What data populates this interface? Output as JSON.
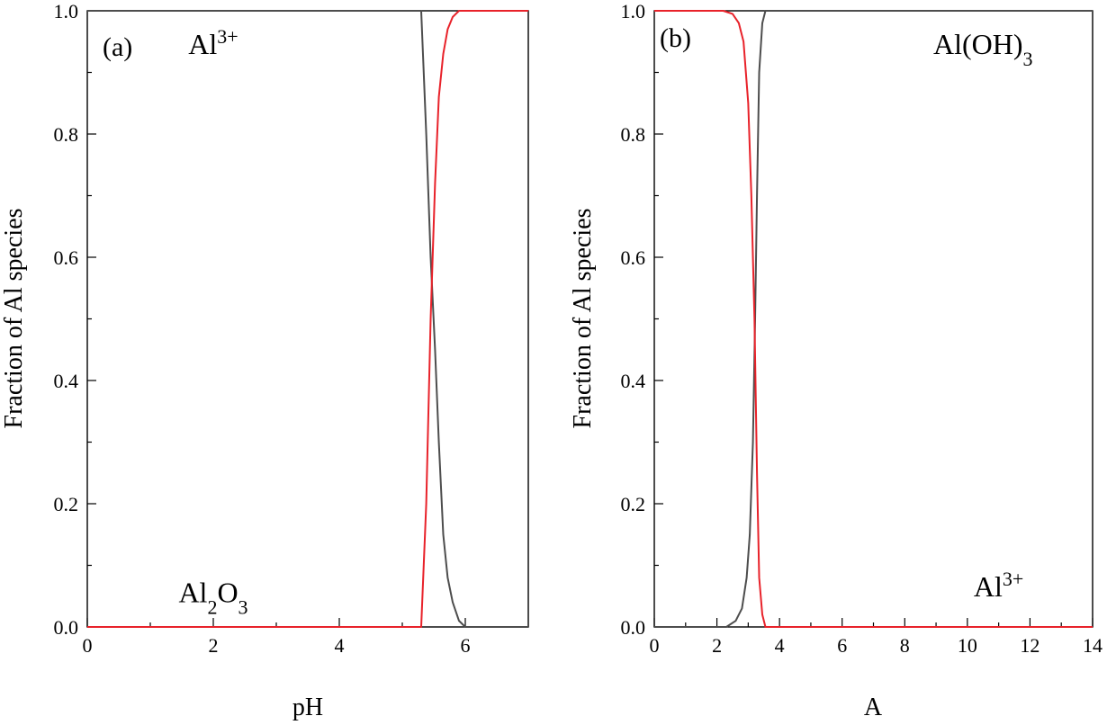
{
  "chart_data": [
    {
      "type": "line",
      "panel_label": "(a)",
      "xlabel": "pH",
      "ylabel": "Fraction of Al species",
      "xlim": [
        0,
        7
      ],
      "ylim": [
        0,
        1
      ],
      "xticks": [
        0,
        2,
        4,
        6
      ],
      "yticks": [
        0.0,
        0.2,
        0.4,
        0.6,
        0.8,
        1.0
      ],
      "xtick_labels": [
        "0",
        "2",
        "4",
        "6"
      ],
      "ytick_labels": [
        "0.0",
        "0.2",
        "0.4",
        "0.6",
        "0.8",
        "1.0"
      ],
      "series": [
        {
          "color": "#4d4d4d",
          "x": [
            0,
            5.3,
            5.38,
            5.45,
            5.52,
            5.58,
            5.65,
            5.72,
            5.8,
            5.9,
            6.0,
            7.0
          ],
          "y": [
            1.0,
            1.0,
            0.8,
            0.6,
            0.45,
            0.3,
            0.15,
            0.08,
            0.04,
            0.01,
            0.0,
            0.0
          ]
        },
        {
          "color": "#e8222a",
          "x": [
            0,
            5.3,
            5.38,
            5.45,
            5.52,
            5.58,
            5.65,
            5.72,
            5.8,
            5.9,
            6.0,
            7.0
          ],
          "y": [
            0.0,
            0.0,
            0.2,
            0.5,
            0.72,
            0.86,
            0.93,
            0.97,
            0.99,
            1.0,
            1.0,
            1.0
          ]
        }
      ],
      "annotations": [
        {
          "base": "Al",
          "sup": "3+",
          "x": 2.0,
          "y": 0.93
        },
        {
          "base": "Al",
          "sub1": "2",
          "mid": "O",
          "sub2": "3",
          "x": 2.0,
          "y": 0.04
        }
      ]
    },
    {
      "type": "line",
      "panel_label": "(b)",
      "xlabel": "A",
      "ylabel": "Fraction of Al species",
      "xlim": [
        0,
        14
      ],
      "ylim": [
        0,
        1
      ],
      "xticks": [
        0,
        2,
        4,
        6,
        8,
        10,
        12,
        14
      ],
      "yticks": [
        0.0,
        0.2,
        0.4,
        0.6,
        0.8,
        1.0
      ],
      "xtick_labels": [
        "0",
        "2",
        "4",
        "6",
        "8",
        "10",
        "12",
        "14"
      ],
      "ytick_labels": [
        "0.0",
        "0.2",
        "0.4",
        "0.6",
        "0.8",
        "1.0"
      ],
      "series": [
        {
          "color": "#4d4d4d",
          "x": [
            0,
            2.3,
            2.6,
            2.8,
            2.95,
            3.05,
            3.15,
            3.22,
            3.28,
            3.35,
            3.45,
            3.55,
            14
          ],
          "y": [
            0.0,
            0.0,
            0.01,
            0.03,
            0.08,
            0.15,
            0.3,
            0.5,
            0.7,
            0.9,
            0.98,
            1.0,
            1.0
          ]
        },
        {
          "color": "#e8222a",
          "x": [
            0,
            2.2,
            2.5,
            2.7,
            2.85,
            3.0,
            3.1,
            3.2,
            3.28,
            3.35,
            3.45,
            3.55,
            14
          ],
          "y": [
            1.0,
            1.0,
            0.995,
            0.98,
            0.95,
            0.85,
            0.7,
            0.5,
            0.25,
            0.08,
            0.02,
            0.0,
            0.0
          ]
        }
      ],
      "annotations": [
        {
          "base": "Al(OH)",
          "sub": "3",
          "x": 10.5,
          "y": 0.93
        },
        {
          "base": "Al",
          "sup": "3+",
          "x": 11.0,
          "y": 0.05
        }
      ]
    }
  ]
}
